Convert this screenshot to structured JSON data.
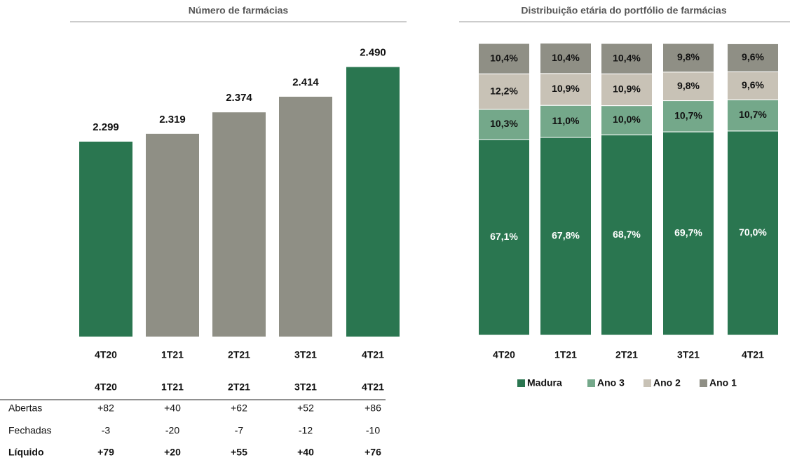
{
  "chart_data": [
    {
      "type": "bar",
      "title": "Número de farmácias",
      "categories": [
        "4T20",
        "1T21",
        "2T21",
        "3T21",
        "4T21"
      ],
      "values": [
        2299,
        2319,
        2374,
        2414,
        2490
      ],
      "value_labels": [
        "2.299",
        "2.319",
        "2.374",
        "2.414",
        "2.490"
      ],
      "colors": [
        "#2a7650",
        "#8f8f85",
        "#8f8f85",
        "#8f8f85",
        "#2a7650"
      ],
      "ylim": [
        1800,
        2500
      ]
    },
    {
      "type": "stacked_bar",
      "title": "Distribuição etária do portfólio de farmácias",
      "categories": [
        "4T20",
        "1T21",
        "2T21",
        "3T21",
        "4T21"
      ],
      "series": [
        {
          "name": "Madura",
          "color": "#2a7650",
          "values": [
            67.1,
            67.8,
            68.7,
            69.7,
            70.0
          ],
          "value_labels": [
            "67,1%",
            "67,8%",
            "68,7%",
            "69,7%",
            "70,0%"
          ]
        },
        {
          "name": "Ano 3",
          "color": "#74a88a",
          "values": [
            10.3,
            11.0,
            10.0,
            10.7,
            10.7
          ],
          "value_labels": [
            "10,3%",
            "11,0%",
            "10,0%",
            "10,7%",
            "10,7%"
          ]
        },
        {
          "name": "Ano 2",
          "color": "#c8c2b6",
          "values": [
            12.2,
            10.9,
            10.9,
            9.8,
            9.6
          ],
          "value_labels": [
            "12,2%",
            "10,9%",
            "10,9%",
            "9,8%",
            "9,6%"
          ]
        },
        {
          "name": "Ano 1",
          "color": "#8f8f85",
          "values": [
            10.4,
            10.4,
            10.4,
            9.8,
            9.6
          ],
          "value_labels": [
            "10,4%",
            "10,4%",
            "10,4%",
            "9,8%",
            "9,6%"
          ]
        }
      ],
      "ylim": [
        0,
        100
      ],
      "legend": "bottom"
    }
  ],
  "table": {
    "header": [
      "4T20",
      "1T21",
      "2T21",
      "3T21",
      "4T21"
    ],
    "rows": [
      [
        "Abertas",
        "+82",
        "+40",
        "+62",
        "+52",
        "+86"
      ],
      [
        "Fechadas",
        "-3",
        "-20",
        "-7",
        "-12",
        "-10"
      ],
      [
        "Líquido",
        "+79",
        "+20",
        "+55",
        "+40",
        "+76"
      ]
    ]
  }
}
